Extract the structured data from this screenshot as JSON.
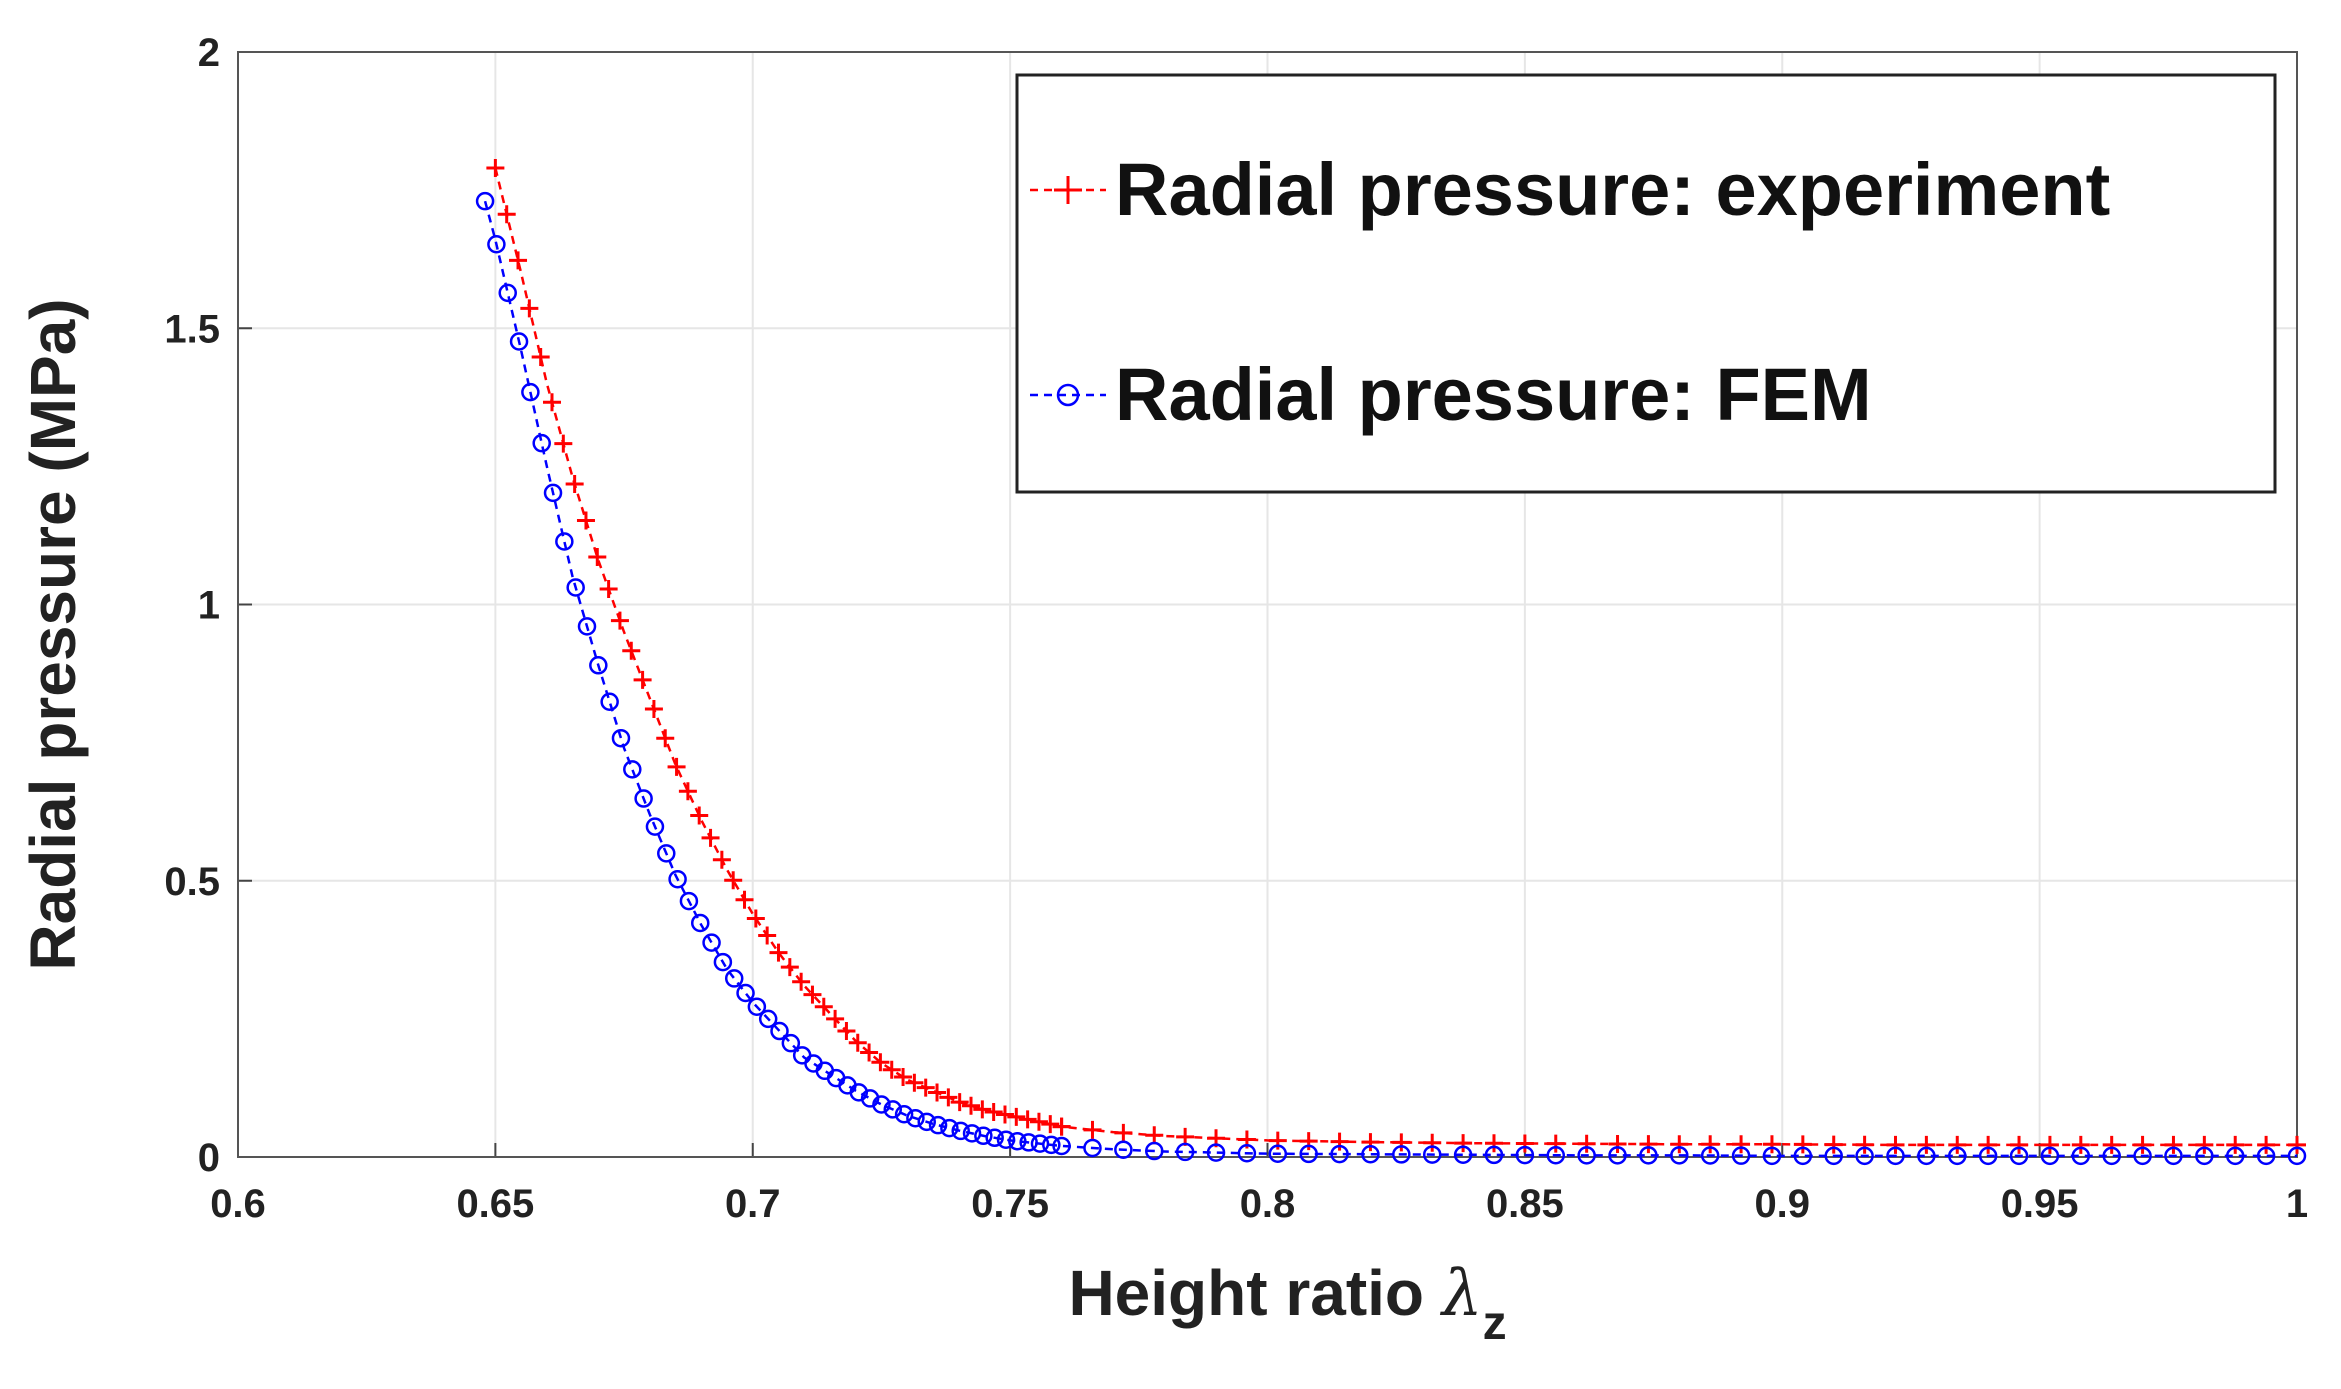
{
  "chart_data": {
    "type": "line",
    "title": "",
    "xlabel": "Height ratio",
    "xlabel_symbol": "λ",
    "xlabel_subscript": "z",
    "ylabel": "Radial pressure (MPa)",
    "xlim": [
      0.6,
      1.0
    ],
    "ylim": [
      0,
      2
    ],
    "grid": true,
    "legend_position": "top-right",
    "x_ticks": [
      "0.6",
      "0.65",
      "0.7",
      "0.75",
      "0.8",
      "0.85",
      "0.9",
      "0.95",
      "1"
    ],
    "y_ticks": [
      "0",
      "0.5",
      "1",
      "1.5",
      "2"
    ],
    "series": [
      {
        "name": "Radial pressure: experiment",
        "color": "#ff0000",
        "marker": "plus",
        "line_style": "dashed",
        "x": [
          0.65,
          0.655,
          0.66,
          0.665,
          0.67,
          0.675,
          0.68,
          0.685,
          0.69,
          0.695,
          0.7,
          0.705,
          0.71,
          0.715,
          0.72,
          0.725,
          0.73,
          0.735,
          0.74,
          0.745,
          0.75,
          0.76,
          0.77,
          0.78,
          0.79,
          0.8,
          0.82,
          0.84,
          0.86,
          0.88,
          0.9,
          0.92,
          0.94,
          0.96,
          0.98,
          1.0
        ],
        "values": [
          1.79,
          1.6,
          1.4,
          1.23,
          1.08,
          0.95,
          0.83,
          0.71,
          0.61,
          0.52,
          0.44,
          0.37,
          0.31,
          0.26,
          0.21,
          0.17,
          0.14,
          0.12,
          0.1,
          0.085,
          0.075,
          0.055,
          0.045,
          0.038,
          0.034,
          0.03,
          0.027,
          0.025,
          0.024,
          0.023,
          0.023,
          0.022,
          0.022,
          0.022,
          0.022,
          0.022
        ]
      },
      {
        "name": "Radial pressure: FEM",
        "color": "#0000ff",
        "marker": "circle",
        "line_style": "dashed",
        "x": [
          0.648,
          0.65,
          0.652,
          0.655,
          0.66,
          0.665,
          0.67,
          0.675,
          0.68,
          0.685,
          0.69,
          0.695,
          0.7,
          0.705,
          0.71,
          0.715,
          0.72,
          0.725,
          0.73,
          0.735,
          0.74,
          0.745,
          0.75,
          0.76,
          0.77,
          0.78,
          0.79,
          0.8,
          0.82,
          0.84,
          0.86,
          0.88,
          0.9,
          0.92,
          0.94,
          0.96,
          0.98,
          1.0
        ],
        "values": [
          1.73,
          1.66,
          1.58,
          1.46,
          1.25,
          1.05,
          0.89,
          0.74,
          0.62,
          0.51,
          0.42,
          0.34,
          0.28,
          0.23,
          0.18,
          0.15,
          0.12,
          0.095,
          0.075,
          0.06,
          0.048,
          0.038,
          0.03,
          0.02,
          0.014,
          0.01,
          0.008,
          0.006,
          0.005,
          0.004,
          0.003,
          0.003,
          0.002,
          0.002,
          0.002,
          0.002,
          0.002,
          0.002
        ]
      }
    ]
  }
}
